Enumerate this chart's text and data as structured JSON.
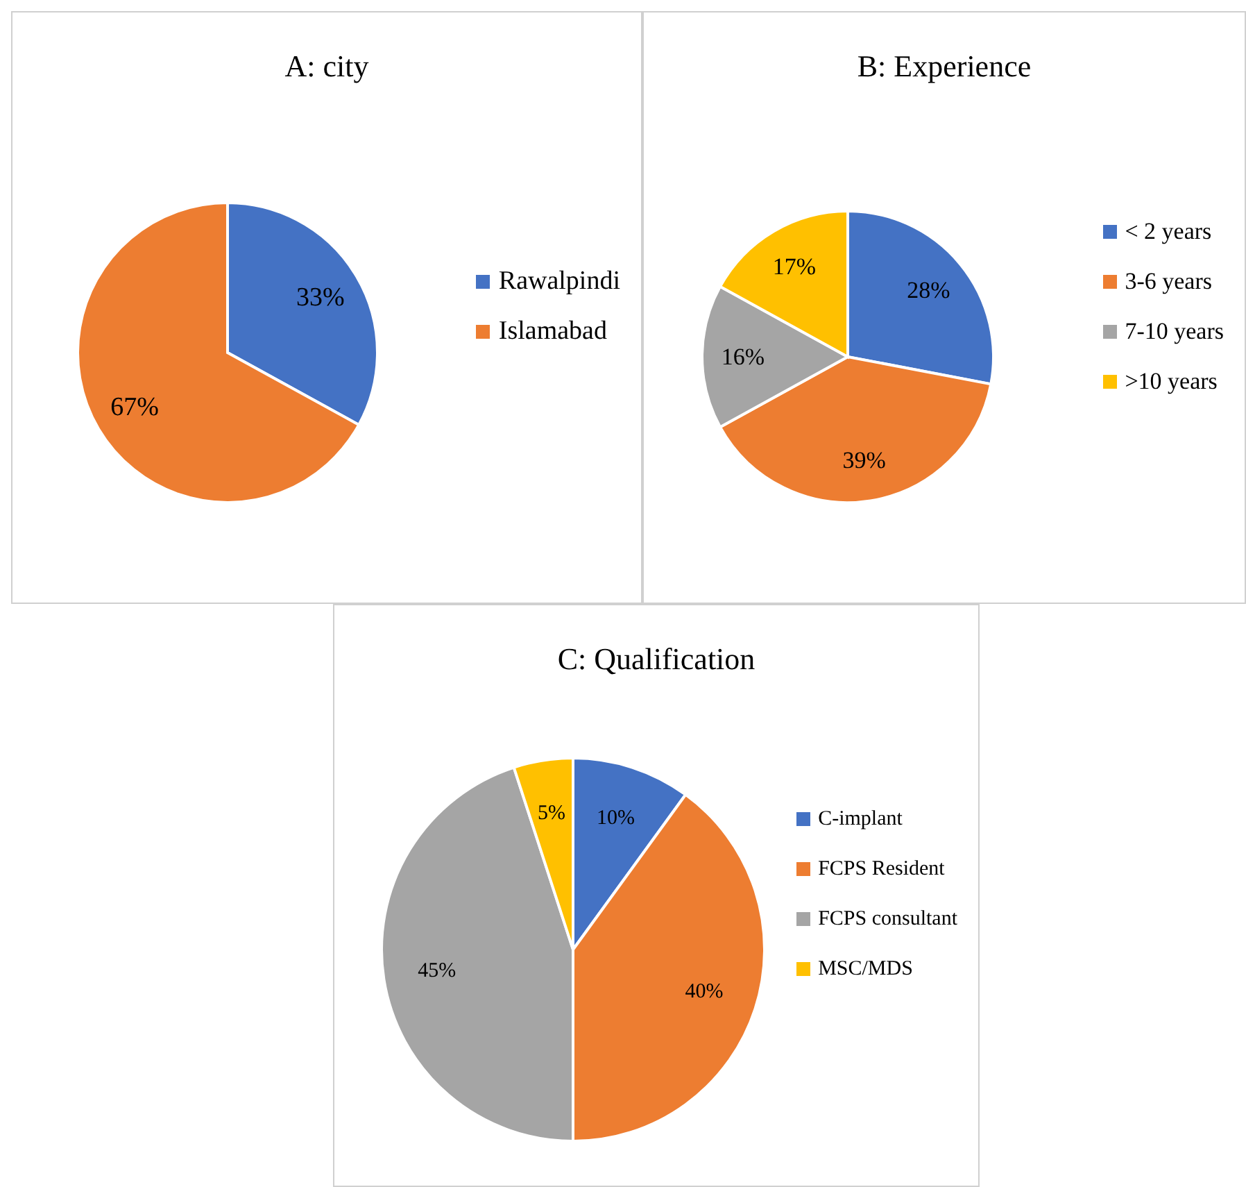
{
  "chart_data": [
    {
      "type": "pie",
      "title": "A: city",
      "categories": [
        "Rawalpindi",
        "Islamabad"
      ],
      "values": [
        33,
        67
      ],
      "value_labels": [
        "33%",
        "67%"
      ],
      "colors": [
        "#4472c4",
        "#ed7d31"
      ],
      "legend": "right"
    },
    {
      "type": "pie",
      "title": "B: Experience",
      "categories": [
        "< 2 years",
        "3-6 years",
        "7-10 years",
        ">10 years"
      ],
      "values": [
        28,
        39,
        16,
        17
      ],
      "value_labels": [
        "28%",
        "39%",
        "16%",
        "17%"
      ],
      "colors": [
        "#4472c4",
        "#ed7d31",
        "#a5a5a5",
        "#ffc000"
      ],
      "legend": "right"
    },
    {
      "type": "pie",
      "title": "C: Qualification",
      "categories": [
        "C-implant",
        "FCPS Resident",
        "FCPS consultant",
        "MSC/MDS"
      ],
      "values": [
        10,
        40,
        45,
        5
      ],
      "value_labels": [
        "10%",
        "40%",
        "45%",
        "5%"
      ],
      "colors": [
        "#4472c4",
        "#ed7d31",
        "#a5a5a5",
        "#ffc000"
      ],
      "legend": "right"
    }
  ]
}
